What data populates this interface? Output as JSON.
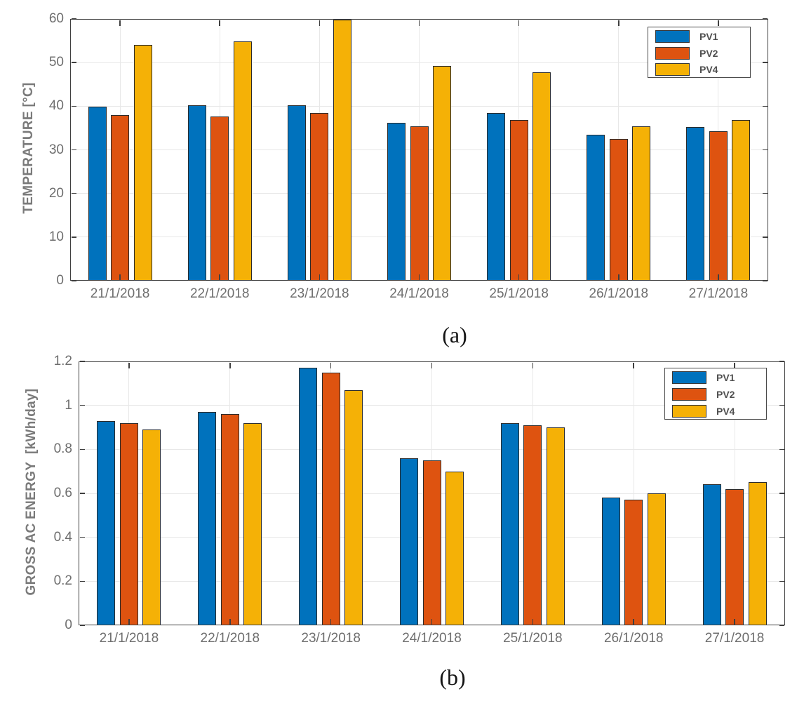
{
  "figure": {
    "caption_a": "(a)",
    "caption_b": "(b)"
  },
  "colors": {
    "pv1": "#0072BD",
    "pv2": "#DE5310",
    "pv4": "#F5B106",
    "axis": "#3F3F3F",
    "grid": "#E8E8E8",
    "tick_label": "#6E6E6E",
    "axis_title": "#7A7A7A",
    "legend_text": "#4F4F4F"
  },
  "chart_data": [
    {
      "id": "temperature",
      "type": "bar",
      "caption": "(a)",
      "ylabel": "TEMPERATURE [°C]",
      "xlabel": "",
      "categories": [
        "21/1/2018",
        "22/1/2018",
        "23/1/2018",
        "24/1/2018",
        "25/1/2018",
        "26/1/2018",
        "27/1/2018"
      ],
      "series": [
        {
          "name": "PV1",
          "color": "#0072BD",
          "values": [
            39.9,
            40.2,
            40.2,
            36.2,
            38.5,
            33.5,
            35.2
          ]
        },
        {
          "name": "PV2",
          "color": "#DE5310",
          "values": [
            38.0,
            37.7,
            38.4,
            35.4,
            36.8,
            32.5,
            34.3
          ]
        },
        {
          "name": "PV4",
          "color": "#F5B106",
          "values": [
            54.1,
            54.9,
            59.8,
            49.2,
            47.8,
            35.4,
            36.9
          ]
        }
      ],
      "ylim": [
        0,
        60
      ],
      "ytick_values": [
        0,
        10,
        20,
        30,
        40,
        50,
        60
      ],
      "ytick_labels": [
        "0",
        "10",
        "20",
        "30",
        "40",
        "50",
        "60"
      ],
      "grid": true,
      "legend_position": "top-right"
    },
    {
      "id": "energy",
      "type": "bar",
      "caption": "(b)",
      "ylabel": "GROSS AC ENERGY  [kWh/day]",
      "xlabel": "",
      "categories": [
        "21/1/2018",
        "22/1/2018",
        "23/1/2018",
        "24/1/2018",
        "25/1/2018",
        "26/1/2018",
        "27/1/2018"
      ],
      "series": [
        {
          "name": "PV1",
          "color": "#0072BD",
          "values": [
            0.93,
            0.97,
            1.17,
            0.76,
            0.92,
            0.58,
            0.64
          ]
        },
        {
          "name": "PV2",
          "color": "#DE5310",
          "values": [
            0.92,
            0.96,
            1.15,
            0.75,
            0.91,
            0.57,
            0.62
          ]
        },
        {
          "name": "PV4",
          "color": "#F5B106",
          "values": [
            0.89,
            0.92,
            1.07,
            0.7,
            0.9,
            0.6,
            0.65
          ]
        }
      ],
      "ylim": [
        0,
        1.2
      ],
      "ytick_values": [
        0,
        0.2,
        0.4,
        0.6,
        0.8,
        1,
        1.2
      ],
      "ytick_labels": [
        "0",
        "0.2",
        "0.4",
        "0.6",
        "0.8",
        "1",
        "1.2"
      ],
      "grid": true,
      "legend_position": "top-right"
    }
  ]
}
